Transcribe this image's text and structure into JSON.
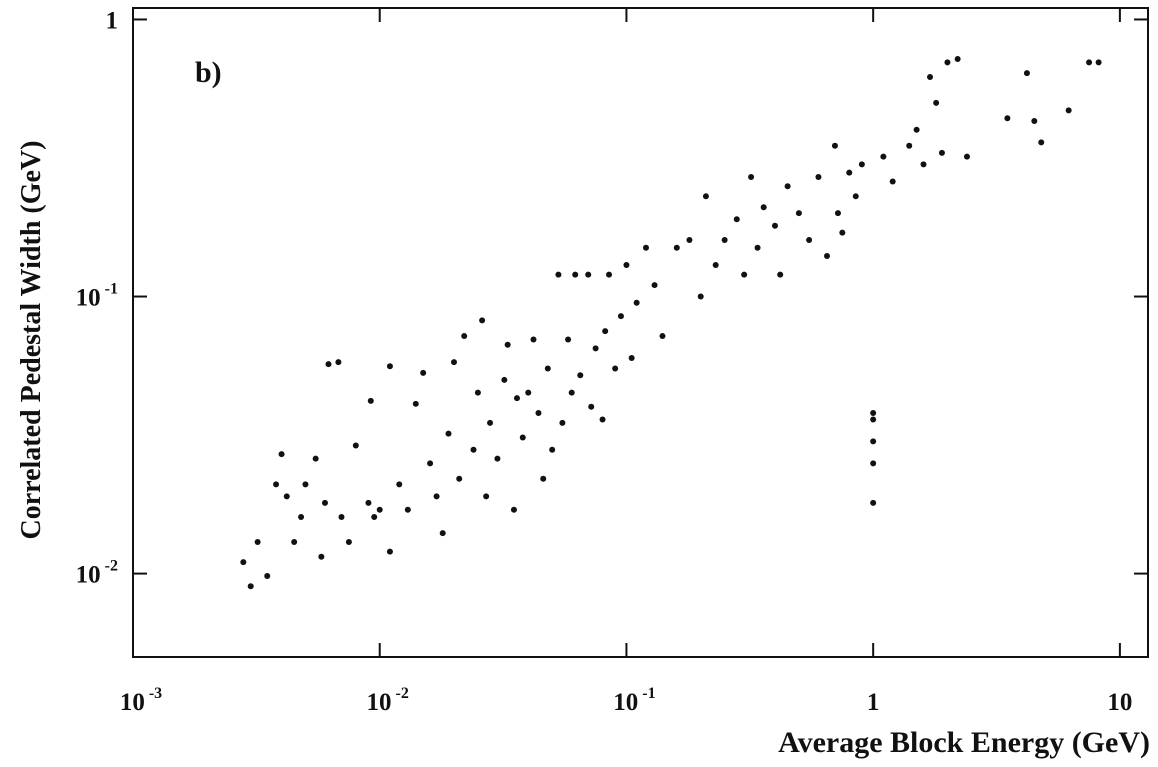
{
  "chart_data": {
    "type": "scatter",
    "annotation": "b)",
    "x_label": "Average Block Energy (GeV)",
    "y_label": "Correlated Pedestal Width (GeV)",
    "log_x": true,
    "log_y": true,
    "color": "#111111",
    "xlim": [
      0.001,
      13
    ],
    "ylim": [
      0.005,
      1.1
    ],
    "xticks": [
      {
        "value": 0.001,
        "label": "10",
        "exponent": "-3"
      },
      {
        "value": 0.01,
        "label": "10",
        "exponent": "-2"
      },
      {
        "value": 0.1,
        "label": "10",
        "exponent": "-1"
      },
      1,
      10
    ],
    "yticks": [
      {
        "value": 0.01,
        "label": "10",
        "exponent": "-2"
      },
      {
        "value": 0.1,
        "label": "10",
        "exponent": "-1"
      },
      1
    ],
    "x": [
      0.0028,
      0.003,
      0.0032,
      0.0035,
      0.0038,
      0.004,
      0.0042,
      0.0045,
      0.0048,
      0.005,
      0.0055,
      0.0058,
      0.006,
      0.0062,
      0.0068,
      0.007,
      0.0075,
      0.008,
      0.009,
      0.0092,
      0.0095,
      0.01,
      0.011,
      0.011,
      0.012,
      0.013,
      0.014,
      0.015,
      0.016,
      0.017,
      0.018,
      0.019,
      0.02,
      0.021,
      0.022,
      0.024,
      0.025,
      0.026,
      0.027,
      0.028,
      0.03,
      0.032,
      0.033,
      0.035,
      0.036,
      0.038,
      0.04,
      0.042,
      0.044,
      0.046,
      0.048,
      0.05,
      0.053,
      0.055,
      0.058,
      0.06,
      0.062,
      0.065,
      0.07,
      0.072,
      0.075,
      0.08,
      0.082,
      0.085,
      0.09,
      0.095,
      0.1,
      0.105,
      0.11,
      0.12,
      0.13,
      0.14,
      0.16,
      0.18,
      0.2,
      0.21,
      0.23,
      0.25,
      0.28,
      0.3,
      0.32,
      0.34,
      0.36,
      0.4,
      0.42,
      0.45,
      0.5,
      0.55,
      0.6,
      0.65,
      0.7,
      0.72,
      0.75,
      0.8,
      0.85,
      0.9,
      1,
      1,
      1,
      1,
      1,
      1.1,
      1.2,
      1.4,
      1.5,
      1.6,
      1.7,
      1.8,
      1.9,
      2,
      2.2,
      2.4,
      3.5,
      4.2,
      4.5,
      4.8,
      6.2,
      7.5,
      8.2
    ],
    "values": [
      0.011,
      0.009,
      0.013,
      0.0098,
      0.021,
      0.027,
      0.019,
      0.013,
      0.016,
      0.021,
      0.026,
      0.0115,
      0.018,
      0.057,
      0.058,
      0.016,
      0.013,
      0.029,
      0.018,
      0.042,
      0.016,
      0.017,
      0.012,
      0.056,
      0.021,
      0.017,
      0.041,
      0.053,
      0.025,
      0.019,
      0.014,
      0.032,
      0.058,
      0.022,
      0.072,
      0.028,
      0.045,
      0.082,
      0.019,
      0.035,
      0.026,
      0.05,
      0.067,
      0.017,
      0.043,
      0.031,
      0.045,
      0.07,
      0.038,
      0.022,
      0.055,
      0.028,
      0.12,
      0.035,
      0.07,
      0.045,
      0.12,
      0.052,
      0.12,
      0.04,
      0.065,
      0.036,
      0.075,
      0.12,
      0.055,
      0.085,
      0.13,
      0.06,
      0.095,
      0.15,
      0.11,
      0.072,
      0.15,
      0.16,
      0.1,
      0.23,
      0.13,
      0.16,
      0.19,
      0.12,
      0.27,
      0.15,
      0.21,
      0.18,
      0.12,
      0.25,
      0.2,
      0.16,
      0.27,
      0.14,
      0.35,
      0.2,
      0.17,
      0.28,
      0.23,
      0.3,
      0.036,
      0.03,
      0.025,
      0.018,
      0.038,
      0.32,
      0.26,
      0.35,
      0.4,
      0.3,
      0.62,
      0.5,
      0.33,
      0.7,
      0.72,
      0.32,
      0.44,
      0.64,
      0.43,
      0.36,
      0.47,
      0.7,
      0.7
    ]
  }
}
